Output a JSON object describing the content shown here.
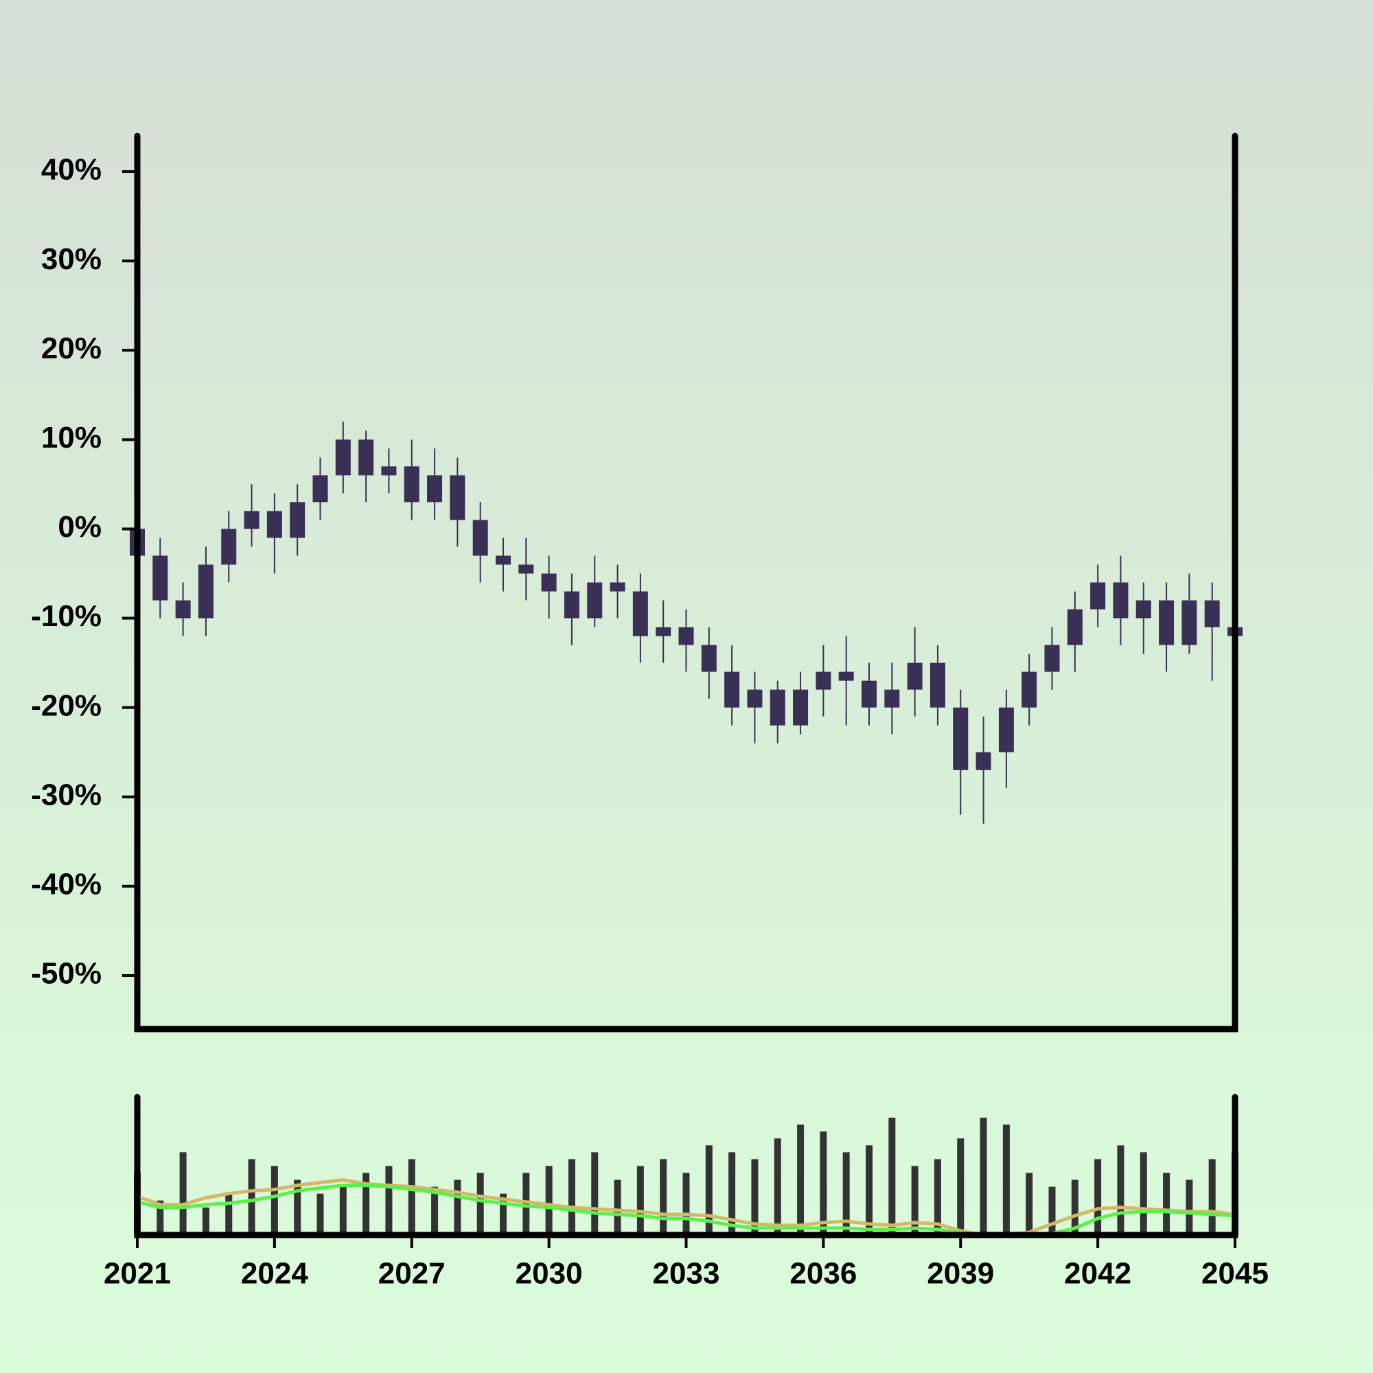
{
  "chart_data": {
    "type": "candlestick",
    "x": [
      2021,
      2021.5,
      2022,
      2022.5,
      2023,
      2023.5,
      2024,
      2024.5,
      2025,
      2025.5,
      2026,
      2026.5,
      2027,
      2027.5,
      2028,
      2028.5,
      2029,
      2029.5,
      2030,
      2030.5,
      2031,
      2031.5,
      2032,
      2032.5,
      2033,
      2033.5,
      2034,
      2034.5,
      2035,
      2035.5,
      2036,
      2036.5,
      2037,
      2037.5,
      2038,
      2038.5,
      2039,
      2039.5,
      2040,
      2040.5,
      2041,
      2041.5,
      2042,
      2042.5,
      2043,
      2043.5,
      2044,
      2044.5,
      2045
    ],
    "open": [
      0,
      -3,
      -8,
      -10,
      -4,
      0,
      2,
      -1,
      3,
      6,
      10,
      6,
      7,
      3,
      6,
      1,
      -3,
      -4,
      -5,
      -7,
      -10,
      -6,
      -7,
      -12,
      -11,
      -13,
      -16,
      -20,
      -18,
      -22,
      -18,
      -16,
      -17,
      -20,
      -18,
      -15,
      -20,
      -27,
      -25,
      -20,
      -16,
      -13,
      -9,
      -6,
      -10,
      -8,
      -13,
      -8,
      -11
    ],
    "high": [
      2,
      -1,
      -6,
      -2,
      2,
      5,
      4,
      5,
      8,
      12,
      11,
      9,
      10,
      9,
      8,
      3,
      -1,
      -1,
      -3,
      -5,
      -3,
      -4,
      -5,
      -8,
      -9,
      -11,
      -13,
      -16,
      -17,
      -16,
      -13,
      -12,
      -15,
      -15,
      -11,
      -13,
      -18,
      -21,
      -18,
      -14,
      -11,
      -7,
      -4,
      -3,
      -6,
      -6,
      -5,
      -6,
      -9
    ],
    "low": [
      -5,
      -10,
      -12,
      -12,
      -6,
      -2,
      -5,
      -3,
      1,
      4,
      3,
      4,
      1,
      1,
      -2,
      -6,
      -7,
      -8,
      -10,
      -13,
      -11,
      -10,
      -15,
      -15,
      -16,
      -19,
      -22,
      -24,
      -24,
      -23,
      -21,
      -22,
      -22,
      -23,
      -21,
      -22,
      -32,
      -33,
      -29,
      -22,
      -18,
      -16,
      -11,
      -13,
      -14,
      -16,
      -14,
      -17,
      -17
    ],
    "close": [
      -3,
      -8,
      -10,
      -4,
      0,
      2,
      -1,
      3,
      6,
      10,
      6,
      7,
      3,
      6,
      1,
      -3,
      -4,
      -5,
      -7,
      -10,
      -6,
      -7,
      -12,
      -11,
      -13,
      -16,
      -20,
      -18,
      -22,
      -18,
      -16,
      -17,
      -20,
      -18,
      -15,
      -20,
      -27,
      -25,
      -20,
      -16,
      -13,
      -9,
      -6,
      -10,
      -8,
      -13,
      -8,
      -11,
      -12
    ],
    "color": "#3a2f55",
    "xlim": [
      2021,
      2045
    ],
    "xticks": [
      2021,
      2024,
      2027,
      2030,
      2033,
      2036,
      2039,
      2042,
      2045
    ],
    "ylim": [
      -56,
      44
    ],
    "yticks": [
      {
        "value": -50,
        "label": "-50%"
      },
      {
        "value": -40,
        "label": "-40%"
      },
      {
        "value": -30,
        "label": "-30%"
      },
      {
        "value": -20,
        "label": "-20%"
      },
      {
        "value": -10,
        "label": "-10%"
      },
      {
        "value": 0,
        "label": "0%"
      },
      {
        "value": 10,
        "label": "10%"
      },
      {
        "value": 20,
        "label": "20%"
      },
      {
        "value": 30,
        "label": "30%"
      },
      {
        "value": 40,
        "label": "40%"
      }
    ],
    "volume": {
      "values": [
        45,
        25,
        60,
        20,
        30,
        55,
        50,
        40,
        30,
        35,
        45,
        50,
        55,
        35,
        40,
        45,
        30,
        45,
        50,
        55,
        60,
        40,
        50,
        55,
        45,
        65,
        60,
        55,
        70,
        80,
        75,
        60,
        65,
        85,
        50,
        55,
        70,
        85,
        80,
        45,
        35,
        40,
        55,
        65,
        60,
        45,
        40,
        55,
        60
      ],
      "ylim": [
        0,
        100
      ],
      "color": "#333333"
    },
    "moving_averages": [
      {
        "color": "#d4b86a",
        "values": [
          28,
          22,
          22,
          27,
          30,
          32,
          33,
          36,
          38,
          40,
          37,
          36,
          35,
          33,
          31,
          28,
          26,
          24,
          22,
          20,
          19,
          18,
          17,
          15,
          15,
          14,
          11,
          8,
          7,
          7,
          9,
          10,
          8,
          7,
          9,
          8,
          3,
          0,
          0,
          2,
          8,
          14,
          19,
          20,
          19,
          18,
          17,
          17,
          15
        ]
      },
      {
        "color": "#5cf04a",
        "values": [
          24,
          20,
          20,
          22,
          23,
          25,
          28,
          32,
          34,
          36,
          36,
          35,
          33,
          31,
          28,
          25,
          23,
          21,
          20,
          18,
          16,
          15,
          14,
          12,
          12,
          10,
          7,
          5,
          5,
          5,
          5,
          5,
          4,
          4,
          5,
          4,
          2,
          0,
          0,
          0,
          1,
          5,
          12,
          16,
          17,
          17,
          16,
          15,
          14
        ]
      }
    ]
  }
}
